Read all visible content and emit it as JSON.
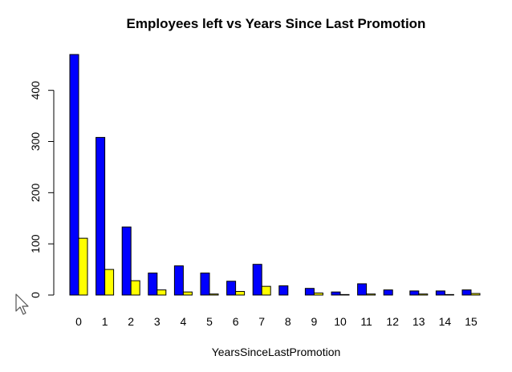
{
  "colors": {
    "left_no": "#0000ff",
    "left_yes": "#ffff00",
    "background": "#ffffff"
  },
  "cursor": {
    "icon": "arrow-pointer-icon"
  },
  "chart_data": {
    "type": "bar",
    "subtype": "grouped",
    "title": "Employees left vs Years Since Last Promotion",
    "xlabel": "YearsSinceLastPromotion",
    "ylabel": "",
    "categories": [
      "0",
      "1",
      "2",
      "3",
      "4",
      "5",
      "6",
      "7",
      "8",
      "9",
      "10",
      "11",
      "12",
      "13",
      "14",
      "15"
    ],
    "series": [
      {
        "values": [
          470,
          308,
          133,
          43,
          57,
          43,
          27,
          60,
          18,
          13,
          6,
          22,
          10,
          8,
          8,
          10
        ],
        "color": "#0000ff"
      },
      {
        "values": [
          111,
          50,
          28,
          10,
          6,
          2,
          7,
          17,
          0,
          4,
          1,
          2,
          0,
          2,
          1,
          3
        ],
        "color": "#ffff00"
      }
    ],
    "yticks": [
      0,
      100,
      200,
      300,
      400
    ],
    "ylim": [
      0,
      470
    ],
    "grid": false,
    "legend": "none"
  }
}
